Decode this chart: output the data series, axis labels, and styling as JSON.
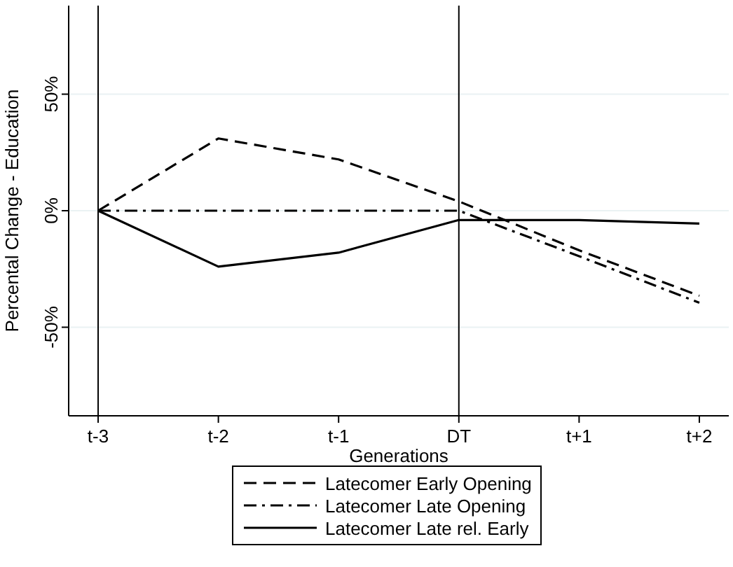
{
  "chart_data": {
    "type": "line",
    "xlabel": "Generations",
    "ylabel": "Percental Change - Education",
    "categories": [
      "t-3",
      "t-2",
      "t-1",
      "DT",
      "t+1",
      "t+2"
    ],
    "series": [
      {
        "name": "Latecomer Early Opening",
        "color": "#000000",
        "line_style": "dashed",
        "values": [
          0,
          31,
          22,
          4,
          -17,
          -36.5
        ]
      },
      {
        "name": "Latecomer Late Opening",
        "color": "#000000",
        "line_style": "dashdot",
        "values": [
          0,
          0,
          0,
          0,
          -19.5,
          -39.5
        ]
      },
      {
        "name": "Latecomer Late rel. Early",
        "color": "#000000",
        "line_style": "solid",
        "values": [
          0,
          -24,
          -18,
          -4,
          -4,
          -5.5
        ]
      }
    ],
    "ylim": [
      -88,
      88
    ],
    "yticks": [
      {
        "value": -50,
        "label": "-50%"
      },
      {
        "value": 0,
        "label": "0%"
      },
      {
        "value": 50,
        "label": "50%"
      }
    ],
    "grid": "y",
    "legend": "bottom",
    "ref_lines": [
      {
        "axis": "x",
        "value": "t-3",
        "color": "#000000"
      },
      {
        "axis": "x",
        "value": "DT",
        "color": "#000000"
      }
    ]
  }
}
